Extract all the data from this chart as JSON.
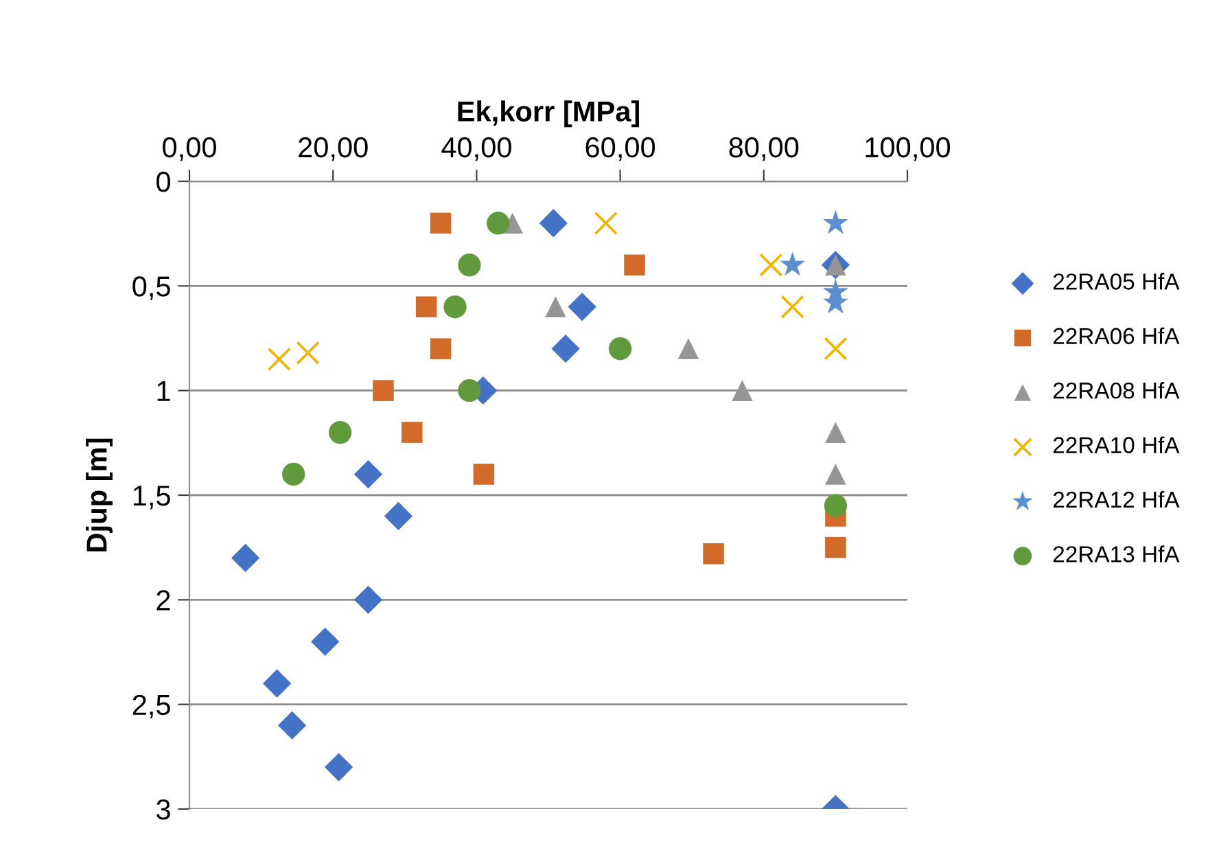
{
  "chart_data": {
    "type": "scatter",
    "xlabel": "Ek,korr [MPa]",
    "ylabel": "Djup [m]",
    "xlim": [
      0,
      100
    ],
    "xticks": [
      {
        "value": 0,
        "label": "0,00"
      },
      {
        "value": 20,
        "label": "20,00"
      },
      {
        "value": 40,
        "label": "40,00"
      },
      {
        "value": 60,
        "label": "60,00"
      },
      {
        "value": 80,
        "label": "80,00"
      },
      {
        "value": 100,
        "label": "100,00"
      }
    ],
    "ylim": [
      3,
      0
    ],
    "yticks": [
      0,
      {
        "value": 0.5,
        "label": "0,5"
      },
      1,
      {
        "value": 1.5,
        "label": "1,5"
      },
      2,
      {
        "value": 2.5,
        "label": "2,5"
      },
      3
    ],
    "grid": "y",
    "legend": "right",
    "series": [
      {
        "name": "22RA05 HfA",
        "color": "#4472c4",
        "marker": "diamond",
        "x": [
          50.7,
          90,
          54.7,
          52.4,
          40.9,
          24.9,
          29.1,
          7.8,
          24.9,
          18.9,
          12.2,
          14.3,
          20.8,
          90
        ],
        "values": [
          0.2,
          0.4,
          0.6,
          0.8,
          1.0,
          1.4,
          1.6,
          1.8,
          2.0,
          2.2,
          2.4,
          2.6,
          2.8,
          3.0
        ]
      },
      {
        "name": "22RA06 HfA",
        "color": "#d26b29",
        "marker": "square",
        "x": [
          35,
          62,
          33,
          35,
          27,
          31,
          41,
          73,
          90,
          90
        ],
        "values": [
          0.2,
          0.4,
          0.6,
          0.8,
          1.0,
          1.2,
          1.4,
          1.78,
          1.6,
          1.75
        ]
      },
      {
        "name": "22RA08 HfA",
        "color": "#969696",
        "marker": "triangle",
        "x": [
          45,
          90,
          51,
          69.5,
          77,
          90,
          90
        ],
        "values": [
          0.2,
          0.4,
          0.6,
          0.8,
          1.0,
          1.2,
          1.4
        ]
      },
      {
        "name": "22RA10 HfA",
        "color": "#f0b400",
        "marker": "cross",
        "x": [
          58,
          81,
          84,
          12.5,
          16.5,
          90
        ],
        "values": [
          0.2,
          0.4,
          0.6,
          0.85,
          0.82,
          0.8
        ]
      },
      {
        "name": "22RA12 HfA",
        "color": "#5b8fd0",
        "marker": "star",
        "x": [
          90,
          84,
          90,
          90
        ],
        "values": [
          0.2,
          0.4,
          0.53,
          0.58
        ]
      },
      {
        "name": "22RA13 HfA",
        "color": "#619a3c",
        "marker": "circle",
        "x": [
          43,
          39,
          37,
          60,
          39,
          21,
          14.5,
          90
        ],
        "values": [
          0.2,
          0.4,
          0.6,
          0.8,
          1.0,
          1.2,
          1.4,
          1.55
        ]
      }
    ]
  }
}
